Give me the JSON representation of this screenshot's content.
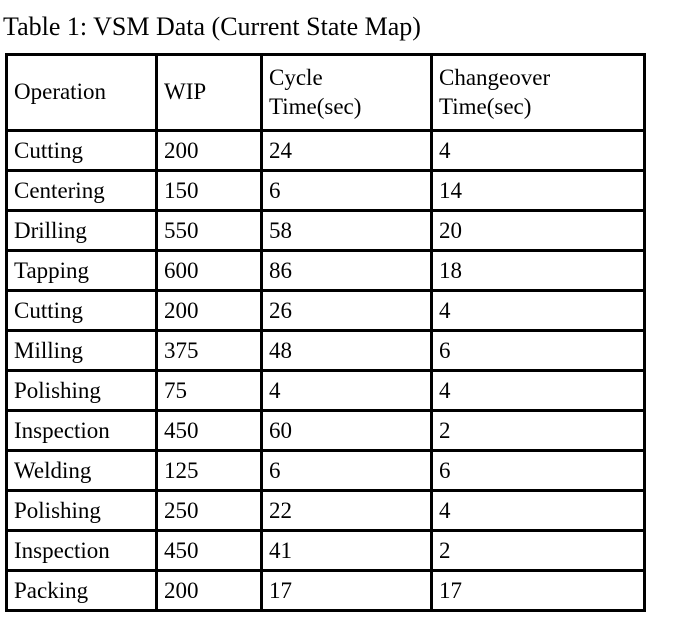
{
  "title": "Table 1: VSM Data (Current State Map)",
  "table": {
    "columns": [
      "Operation",
      "WIP",
      "Cycle Time(sec)",
      "Changeover Time(sec)"
    ],
    "header_lines": [
      [
        "Operation"
      ],
      [
        "WIP"
      ],
      [
        "Cycle",
        "Time(sec)"
      ],
      [
        "Changeover",
        "Time(sec)"
      ]
    ],
    "rows": [
      [
        "Cutting",
        "200",
        "24",
        "4"
      ],
      [
        "Centering",
        "150",
        "6",
        "14"
      ],
      [
        "Drilling",
        "550",
        "58",
        "20"
      ],
      [
        "Tapping",
        "600",
        "86",
        "18"
      ],
      [
        "Cutting",
        "200",
        "26",
        "4"
      ],
      [
        "Milling",
        "375",
        "48",
        "6"
      ],
      [
        "Polishing",
        "75",
        "4",
        "4"
      ],
      [
        "Inspection",
        "450",
        "60",
        "2"
      ],
      [
        "Welding",
        "125",
        "6",
        "6"
      ],
      [
        "Polishing",
        "250",
        "22",
        "4"
      ],
      [
        "Inspection",
        "450",
        "41",
        "2"
      ],
      [
        "Packing",
        "200",
        "17",
        "17"
      ]
    ]
  },
  "colors": {
    "text": "#000000",
    "background": "#ffffff",
    "border": "#000000"
  }
}
